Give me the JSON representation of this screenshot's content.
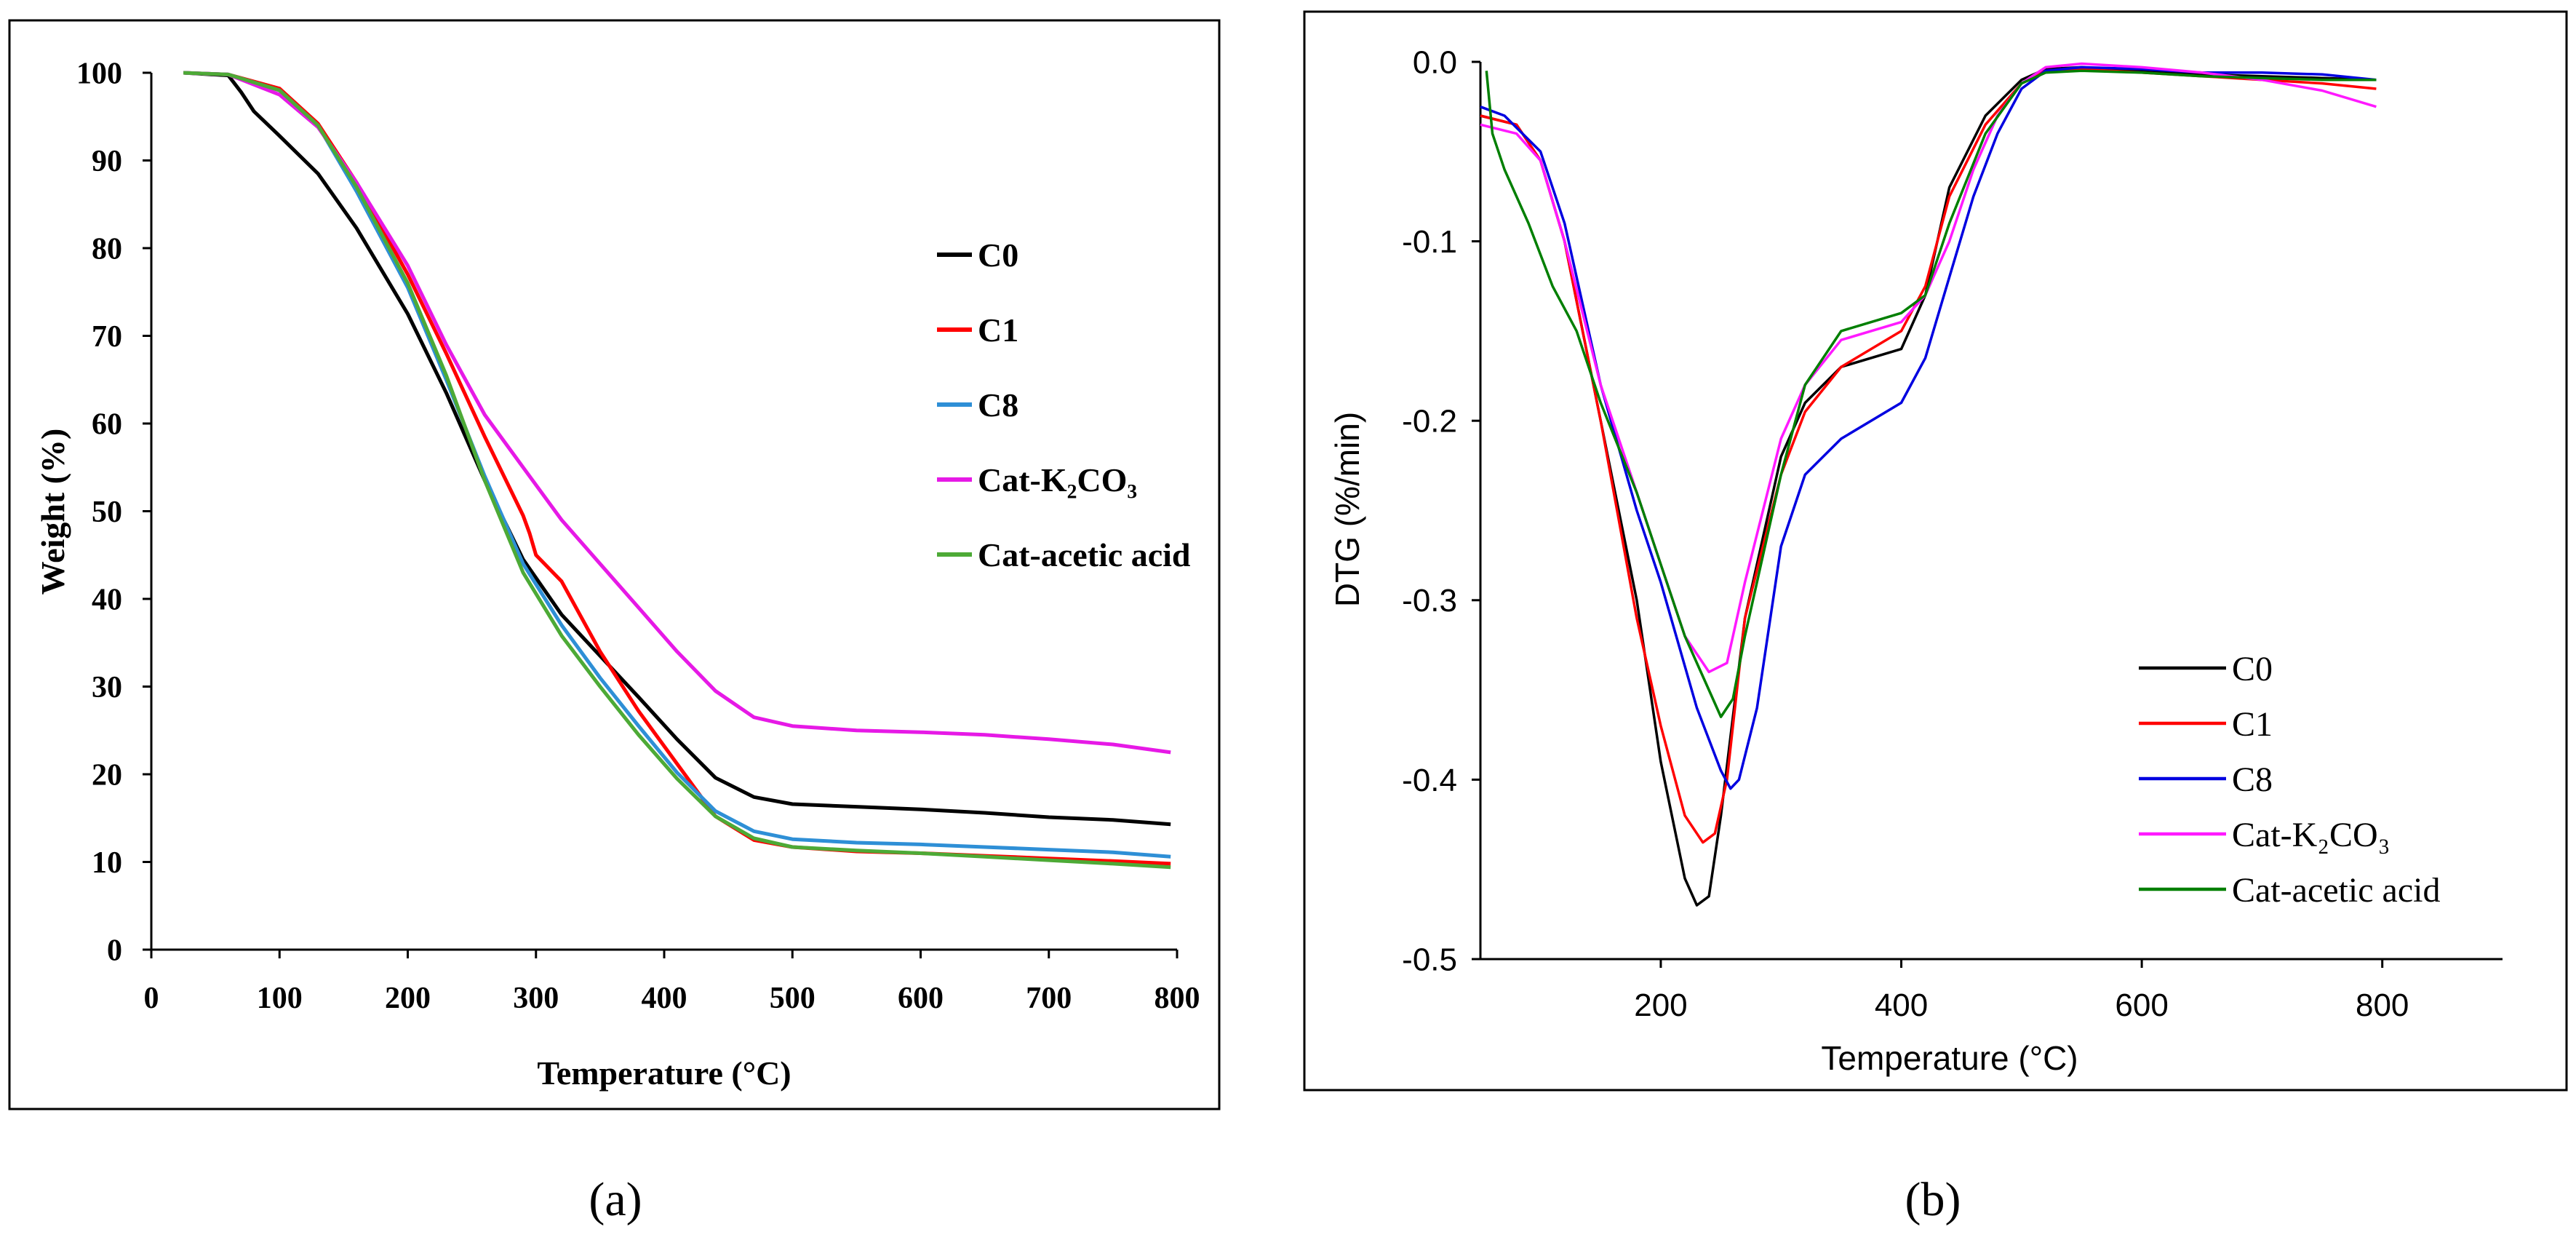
{
  "chart_data": [
    {
      "type": "line",
      "panel_label": "(a)",
      "xlabel": "Temperature (°C)",
      "ylabel": "Weight (%)",
      "xlim": [
        0,
        800
      ],
      "ylim": [
        0,
        100
      ],
      "x_ticks": [
        "0",
        "100",
        "200",
        "300",
        "400",
        "500",
        "600",
        "700",
        "800"
      ],
      "y_ticks": [
        "0",
        "10",
        "20",
        "30",
        "40",
        "50",
        "60",
        "70",
        "80",
        "90",
        "100"
      ],
      "grid": false,
      "legend_position": "right",
      "series": [
        {
          "name": "C0",
          "color": "#000000",
          "x": [
            25,
            60,
            70,
            80,
            100,
            130,
            160,
            200,
            230,
            260,
            290,
            320,
            350,
            380,
            410,
            440,
            470,
            500,
            550,
            600,
            650,
            700,
            750,
            795
          ],
          "y": [
            100,
            99.7,
            97.8,
            95.6,
            92.8,
            88.5,
            82.3,
            72.5,
            63.5,
            53.5,
            44.5,
            38.2,
            33.5,
            28.8,
            24.0,
            19.6,
            17.4,
            16.6,
            16.3,
            16.0,
            15.6,
            15.1,
            14.8,
            14.3
          ]
        },
        {
          "name": "C1",
          "color": "#ff0000",
          "x": [
            25,
            60,
            100,
            130,
            160,
            200,
            230,
            260,
            290,
            295,
            300,
            320,
            350,
            380,
            410,
            440,
            470,
            500,
            550,
            600,
            650,
            700,
            750,
            795
          ],
          "y": [
            100,
            99.8,
            98.2,
            94.2,
            87.5,
            77.0,
            68.0,
            58.5,
            49.5,
            47.5,
            45.0,
            42.0,
            34.0,
            27.2,
            21.2,
            15.2,
            12.5,
            11.7,
            11.2,
            11.0,
            10.7,
            10.4,
            10.1,
            9.8
          ]
        },
        {
          "name": "C8",
          "color": "#2e8fd6",
          "x": [
            25,
            60,
            100,
            130,
            160,
            200,
            230,
            260,
            290,
            320,
            350,
            380,
            410,
            440,
            470,
            500,
            550,
            600,
            650,
            700,
            750,
            795
          ],
          "y": [
            100,
            99.8,
            98.0,
            94.0,
            86.5,
            75.5,
            65.0,
            54.0,
            44.0,
            37.0,
            31.0,
            25.5,
            20.2,
            15.8,
            13.5,
            12.6,
            12.2,
            12.0,
            11.7,
            11.4,
            11.1,
            10.6
          ]
        },
        {
          "name": "Cat-K₂CO₃",
          "color": "#e619e6",
          "x": [
            25,
            60,
            100,
            130,
            160,
            200,
            230,
            260,
            290,
            320,
            350,
            380,
            410,
            440,
            470,
            500,
            550,
            600,
            650,
            700,
            750,
            795
          ],
          "y": [
            100,
            99.8,
            97.5,
            93.8,
            87.5,
            78.0,
            69.0,
            61.0,
            55.0,
            49.0,
            44.0,
            39.0,
            34.0,
            29.5,
            26.5,
            25.5,
            25.0,
            24.8,
            24.5,
            24.0,
            23.4,
            22.5
          ]
        },
        {
          "name": "Cat-acetic acid",
          "color": "#4daa36",
          "x": [
            25,
            60,
            100,
            130,
            160,
            200,
            230,
            260,
            290,
            320,
            350,
            380,
            410,
            440,
            470,
            500,
            550,
            600,
            650,
            700,
            750,
            795
          ],
          "y": [
            100,
            99.8,
            98.0,
            94.0,
            87.0,
            76.0,
            65.5,
            53.5,
            43.0,
            35.8,
            30.0,
            24.5,
            19.5,
            15.2,
            12.7,
            11.7,
            11.3,
            11.0,
            10.6,
            10.2,
            9.8,
            9.4
          ]
        }
      ]
    },
    {
      "type": "line",
      "panel_label": "(b)",
      "xlabel": "Temperature (°C)",
      "ylabel": "DTG (%/min)",
      "xlim": [
        50,
        900
      ],
      "ylim": [
        -0.5,
        0
      ],
      "x_ticks": [
        "200",
        "400",
        "600",
        "800"
      ],
      "y_ticks": [
        "0.0",
        "-0.1",
        "-0.2",
        "-0.3",
        "-0.4",
        "-0.5"
      ],
      "grid": false,
      "legend_position": "bottom-right",
      "series": [
        {
          "name": "C0",
          "color": "#000000",
          "x": [
            50,
            80,
            100,
            120,
            150,
            180,
            200,
            220,
            230,
            240,
            250,
            270,
            300,
            320,
            350,
            400,
            420,
            440,
            470,
            500,
            520,
            550,
            600,
            650,
            700,
            750,
            795
          ],
          "y": [
            -0.03,
            -0.035,
            -0.055,
            -0.1,
            -0.2,
            -0.3,
            -0.39,
            -0.455,
            -0.47,
            -0.465,
            -0.42,
            -0.31,
            -0.22,
            -0.19,
            -0.17,
            -0.16,
            -0.13,
            -0.07,
            -0.03,
            -0.01,
            -0.004,
            -0.003,
            -0.005,
            -0.007,
            -0.008,
            -0.009,
            -0.01
          ]
        },
        {
          "name": "C1",
          "color": "#ff0000",
          "x": [
            50,
            80,
            100,
            120,
            150,
            180,
            200,
            220,
            235,
            245,
            255,
            270,
            300,
            320,
            350,
            400,
            420,
            440,
            470,
            500,
            520,
            550,
            600,
            650,
            700,
            750,
            795
          ],
          "y": [
            -0.03,
            -0.035,
            -0.055,
            -0.1,
            -0.2,
            -0.31,
            -0.37,
            -0.42,
            -0.435,
            -0.43,
            -0.4,
            -0.31,
            -0.23,
            -0.195,
            -0.17,
            -0.15,
            -0.125,
            -0.075,
            -0.035,
            -0.012,
            -0.005,
            -0.004,
            -0.006,
            -0.008,
            -0.01,
            -0.012,
            -0.015
          ]
        },
        {
          "name": "C8",
          "color": "#0000e0",
          "x": [
            50,
            70,
            100,
            120,
            150,
            180,
            200,
            230,
            250,
            258,
            265,
            280,
            300,
            320,
            350,
            400,
            420,
            440,
            460,
            480,
            500,
            520,
            550,
            600,
            650,
            700,
            750,
            795
          ],
          "y": [
            -0.025,
            -0.03,
            -0.05,
            -0.09,
            -0.18,
            -0.25,
            -0.29,
            -0.36,
            -0.395,
            -0.405,
            -0.4,
            -0.36,
            -0.27,
            -0.23,
            -0.21,
            -0.19,
            -0.165,
            -0.12,
            -0.075,
            -0.04,
            -0.015,
            -0.005,
            -0.003,
            -0.004,
            -0.006,
            -0.006,
            -0.007,
            -0.01
          ]
        },
        {
          "name": "Cat-K₂CO₃",
          "color": "#ff19ff",
          "x": [
            50,
            80,
            100,
            120,
            150,
            180,
            200,
            220,
            240,
            255,
            270,
            300,
            320,
            350,
            400,
            420,
            440,
            460,
            480,
            500,
            520,
            550,
            600,
            650,
            700,
            750,
            795
          ],
          "y": [
            -0.035,
            -0.04,
            -0.055,
            -0.1,
            -0.18,
            -0.24,
            -0.28,
            -0.32,
            -0.34,
            -0.335,
            -0.29,
            -0.21,
            -0.18,
            -0.155,
            -0.145,
            -0.13,
            -0.1,
            -0.06,
            -0.03,
            -0.012,
            -0.003,
            -0.001,
            -0.003,
            -0.006,
            -0.01,
            -0.016,
            -0.025
          ]
        },
        {
          "name": "Cat-acetic acid",
          "color": "#007f00",
          "x": [
            55,
            60,
            70,
            90,
            110,
            130,
            150,
            180,
            200,
            220,
            240,
            250,
            260,
            270,
            300,
            320,
            350,
            400,
            420,
            440,
            470,
            500,
            520,
            550,
            600,
            650,
            700,
            750,
            795
          ],
          "y": [
            -0.005,
            -0.04,
            -0.06,
            -0.09,
            -0.125,
            -0.15,
            -0.19,
            -0.24,
            -0.28,
            -0.32,
            -0.35,
            -0.365,
            -0.355,
            -0.32,
            -0.23,
            -0.18,
            -0.15,
            -0.14,
            -0.13,
            -0.09,
            -0.04,
            -0.012,
            -0.006,
            -0.005,
            -0.006,
            -0.008,
            -0.009,
            -0.01,
            -0.01
          ]
        }
      ]
    }
  ]
}
